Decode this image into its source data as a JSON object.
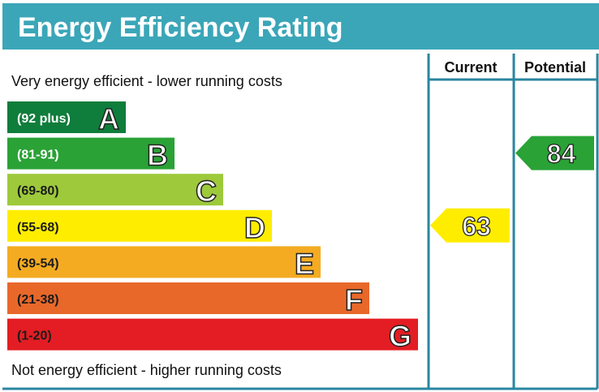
{
  "title": "Energy Efficiency Rating",
  "colors": {
    "header": "#3ba6b8",
    "frame": "#2a86a0"
  },
  "chart_data": {
    "type": "bar",
    "title": "Energy Efficiency Rating",
    "top_label": "Very energy efficient - lower running costs",
    "bottom_label": "Not energy efficient - higher running costs",
    "columns": [
      "Current",
      "Potential"
    ],
    "bands": [
      {
        "letter": "A",
        "range": "(92 plus)",
        "color": "#0f7d3b",
        "text_color": "#ffffff"
      },
      {
        "letter": "B",
        "range": "(81-91)",
        "color": "#2aa236",
        "text_color": "#ffffff"
      },
      {
        "letter": "C",
        "range": "(69-80)",
        "color": "#9dc93b",
        "text_color": "#1a1a1a"
      },
      {
        "letter": "D",
        "range": "(55-68)",
        "color": "#ffed00",
        "text_color": "#1a1a1a"
      },
      {
        "letter": "E",
        "range": "(39-54)",
        "color": "#f4ab22",
        "text_color": "#1a1a1a"
      },
      {
        "letter": "F",
        "range": "(21-38)",
        "color": "#e8682a",
        "text_color": "#1a1a1a"
      },
      {
        "letter": "G",
        "range": "(1-20)",
        "color": "#e31d23",
        "text_color": "#1a1a1a"
      }
    ],
    "current": {
      "value": 63,
      "band": "D",
      "color": "#ffed00"
    },
    "potential": {
      "value": 84,
      "band": "B",
      "color": "#2aa236"
    }
  }
}
